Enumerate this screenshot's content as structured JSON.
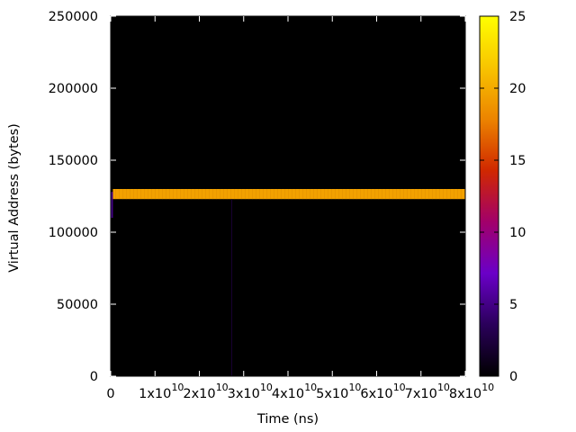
{
  "chart_data": {
    "type": "heatmap",
    "title": "",
    "xlabel": "Time (ns)",
    "ylabel": "Virtual Address (bytes)",
    "xlim": [
      0,
      80000000000
    ],
    "ylim": [
      0,
      250000
    ],
    "x_ticks": [
      {
        "value": 0,
        "mantissa": "0",
        "exponent": ""
      },
      {
        "value": 10000000000,
        "mantissa": "1x10",
        "exponent": "10"
      },
      {
        "value": 20000000000,
        "mantissa": "2x10",
        "exponent": "10"
      },
      {
        "value": 30000000000,
        "mantissa": "3x10",
        "exponent": "10"
      },
      {
        "value": 40000000000,
        "mantissa": "4x10",
        "exponent": "10"
      },
      {
        "value": 50000000000,
        "mantissa": "5x10",
        "exponent": "10"
      },
      {
        "value": 60000000000,
        "mantissa": "6x10",
        "exponent": "10"
      },
      {
        "value": 70000000000,
        "mantissa": "7x10",
        "exponent": "10"
      },
      {
        "value": 80000000000,
        "mantissa": "8x10",
        "exponent": "10"
      }
    ],
    "y_ticks": [
      0,
      50000,
      100000,
      150000,
      200000,
      250000
    ],
    "colorbar": {
      "range": [
        0,
        25
      ],
      "ticks": [
        0,
        5,
        10,
        15,
        20,
        25
      ],
      "stops": [
        "#000000",
        "#2a005a",
        "#6a00c8",
        "#a2006a",
        "#d02800",
        "#ec8400",
        "#f8c400",
        "#ffff00"
      ]
    },
    "background_color": "#000000",
    "cells": [
      {
        "x0": 500000000,
        "x1": 80000000000,
        "y0": 123000,
        "y1": 130000,
        "value": 19.5
      },
      {
        "x0": 0,
        "x1": 500000000,
        "y0": 110000,
        "y1": 128000,
        "value": 5
      },
      {
        "x0": 27200000000,
        "x1": 27400000000,
        "y0": 0,
        "y1": 123000,
        "value": 2
      }
    ],
    "grid": false
  }
}
